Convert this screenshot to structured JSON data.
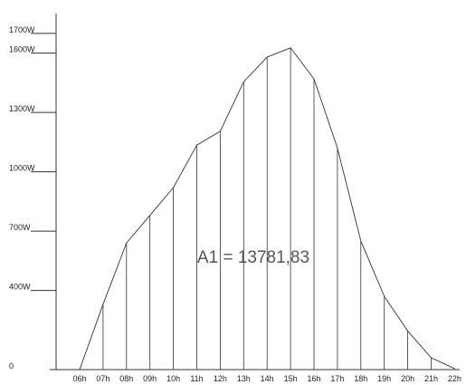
{
  "chart_data": {
    "type": "area",
    "annotation": "A1 = 13781,83",
    "categories": [
      "06h",
      "07h",
      "08h",
      "09h",
      "10h",
      "11h",
      "12h",
      "13h",
      "14h",
      "15h",
      "16h",
      "17h",
      "18h",
      "19h",
      "20h",
      "21h",
      "22h"
    ],
    "values": [
      0,
      330,
      640,
      780,
      920,
      1135,
      1205,
      1455,
      1580,
      1627,
      1470,
      1120,
      650,
      370,
      195,
      60,
      5
    ],
    "color": "#333333",
    "ylim": [
      0,
      1800
    ],
    "yticks": [
      0,
      {
        "value": 400,
        "label": "400W"
      },
      {
        "value": 700,
        "label": "700W"
      },
      {
        "value": 1000,
        "label": "1000W"
      },
      {
        "value": 1300,
        "label": "1300W"
      },
      {
        "value": 1600,
        "label": "1600W"
      },
      {
        "value": 1700,
        "label": "1700W"
      }
    ]
  }
}
